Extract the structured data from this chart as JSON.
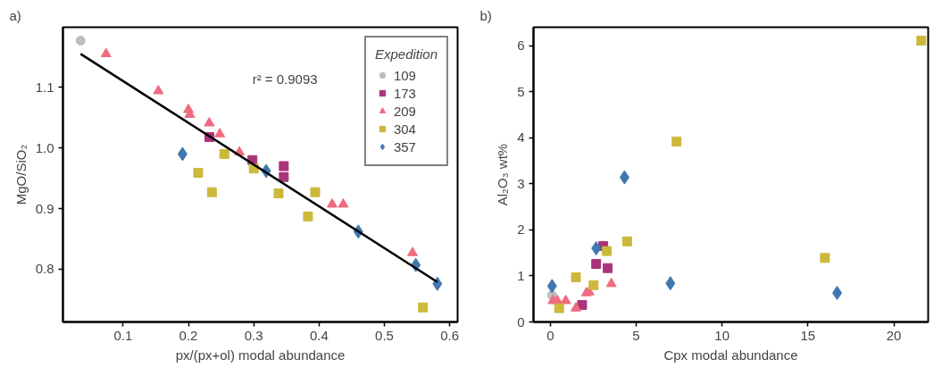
{
  "chart_data": [
    {
      "type": "scatter",
      "title": "a)",
      "xlabel": "px/(px+ol) modal abundance",
      "ylabel": "MgO/SiO₂",
      "legend_title": "Expedition",
      "legend": "top right",
      "grid": false,
      "xlim": [
        0.008,
        0.612
      ],
      "ylim": [
        0.713,
        1.199
      ],
      "xticks": [
        0.1,
        0.2,
        0.3,
        0.4,
        0.5,
        0.6
      ],
      "yticks": [
        0.8,
        0.9,
        {
          "value": 1.0,
          "label": "1.0"
        },
        1.1
      ],
      "annotations": [
        "r² = 0.9093"
      ],
      "series": [
        {
          "name": "109",
          "color": "#bdbdbd",
          "marker": "circle",
          "x": [
            0.035
          ],
          "values": [
            1.177
          ]
        },
        {
          "name": "173",
          "color": "#a8347a",
          "marker": "square",
          "x": [
            0.232,
            0.298,
            0.346,
            0.346
          ],
          "values": [
            1.018,
            0.98,
            0.97,
            0.952
          ]
        },
        {
          "name": "209",
          "color": "#ef6b7f",
          "marker": "triangle",
          "x": [
            0.074,
            0.154,
            0.2,
            0.202,
            0.232,
            0.248,
            0.278,
            0.42,
            0.437,
            0.543
          ],
          "values": [
            1.155,
            1.094,
            1.063,
            1.055,
            1.041,
            1.023,
            0.993,
            0.907,
            0.907,
            0.827
          ]
        },
        {
          "name": "304",
          "color": "#ccb83a",
          "marker": "square",
          "x": [
            0.215,
            0.236,
            0.255,
            0.3,
            0.338,
            0.394,
            0.383,
            0.559
          ],
          "values": [
            0.959,
            0.927,
            0.99,
            0.966,
            0.925,
            0.927,
            0.887,
            0.737
          ]
        },
        {
          "name": "357",
          "color": "#3f78b0",
          "marker": "diamond",
          "x": [
            0.191,
            0.319,
            0.46,
            0.548,
            0.581
          ],
          "values": [
            0.99,
            0.962,
            0.862,
            0.807,
            0.776
          ]
        },
        {
          "type": "line",
          "color": "#000000",
          "marker": "none",
          "x": [
            0.035,
            0.581
          ],
          "values": [
            1.155,
            0.779
          ]
        }
      ]
    },
    {
      "type": "scatter",
      "title": "b)",
      "xlabel": "Cpx modal abundance",
      "ylabel": "Al₂O₃ wt%",
      "grid": false,
      "xlim": [
        -0.98,
        22.0
      ],
      "ylim": [
        0,
        6.4
      ],
      "xticks": [
        0,
        5,
        10,
        15,
        20
      ],
      "yticks": [
        0,
        1,
        2,
        3,
        4,
        5,
        6
      ],
      "series": [
        {
          "color": "#bdbdbd",
          "marker": "circle",
          "x": [
            0.1
          ],
          "values": [
            0.58
          ]
        },
        {
          "color": "#a8347a",
          "marker": "square",
          "x": [
            3.08,
            2.67,
            3.34,
            1.85
          ],
          "values": [
            1.65,
            1.26,
            1.17,
            0.37
          ]
        },
        {
          "color": "#ef6b7f",
          "marker": "triangle",
          "x": [
            0.15,
            0.41,
            0.9,
            1.49,
            2.1,
            2.26,
            3.55
          ],
          "values": [
            0.46,
            0.46,
            0.46,
            0.3,
            0.63,
            0.65,
            0.83
          ]
        },
        {
          "color": "#ccb83a",
          "marker": "square",
          "x": [
            0.51,
            1.49,
            2.52,
            3.29,
            4.47,
            7.35,
            15.99,
            21.6
          ],
          "values": [
            0.3,
            0.97,
            0.8,
            1.54,
            1.75,
            3.92,
            1.39,
            6.11
          ]
        },
        {
          "color": "#3f78b0",
          "marker": "diamond",
          "x": [
            0.1,
            2.67,
            4.32,
            6.99,
            16.7
          ],
          "values": [
            0.78,
            1.6,
            3.14,
            0.84,
            0.63
          ]
        }
      ]
    }
  ]
}
